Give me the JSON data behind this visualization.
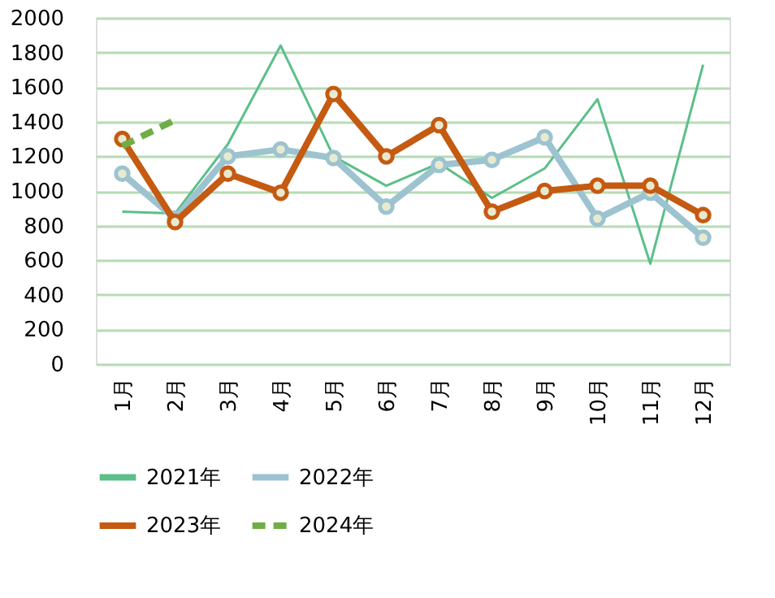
{
  "chart_data": {
    "type": "line",
    "categories": [
      "1月",
      "2月",
      "3月",
      "4月",
      "5月",
      "6月",
      "7月",
      "8月",
      "9月",
      "10月",
      "11月",
      "12月"
    ],
    "series": [
      {
        "name": "2021年",
        "color": "#5bbf8a",
        "values": [
          880,
          870,
          1270,
          1840,
          1200,
          1030,
          1160,
          960,
          1130,
          1530,
          580,
          1730
        ],
        "marker": "none",
        "line_style": "solid"
      },
      {
        "name": "2022年",
        "color": "#9dc3d0",
        "values": [
          1100,
          840,
          1200,
          1240,
          1190,
          910,
          1150,
          1180,
          1310,
          840,
          990,
          730
        ],
        "marker": "circle",
        "line_style": "solid"
      },
      {
        "name": "2023年",
        "color": "#c55a11",
        "values": [
          1300,
          820,
          1100,
          990,
          1560,
          1200,
          1380,
          880,
          1000,
          1030,
          1030,
          860
        ],
        "marker": "circle",
        "line_style": "solid"
      },
      {
        "name": "2024年",
        "color": "#70ad47",
        "values": [
          1260,
          1410,
          null,
          null,
          null,
          null,
          null,
          null,
          null,
          null,
          null,
          null
        ],
        "marker": "none",
        "line_style": "dashed"
      }
    ],
    "ylim": [
      0,
      2000
    ],
    "yticks": [
      0,
      200,
      400,
      600,
      800,
      1000,
      1200,
      1400,
      1600,
      1800,
      2000
    ],
    "grid": "y",
    "legend": "bottom"
  }
}
